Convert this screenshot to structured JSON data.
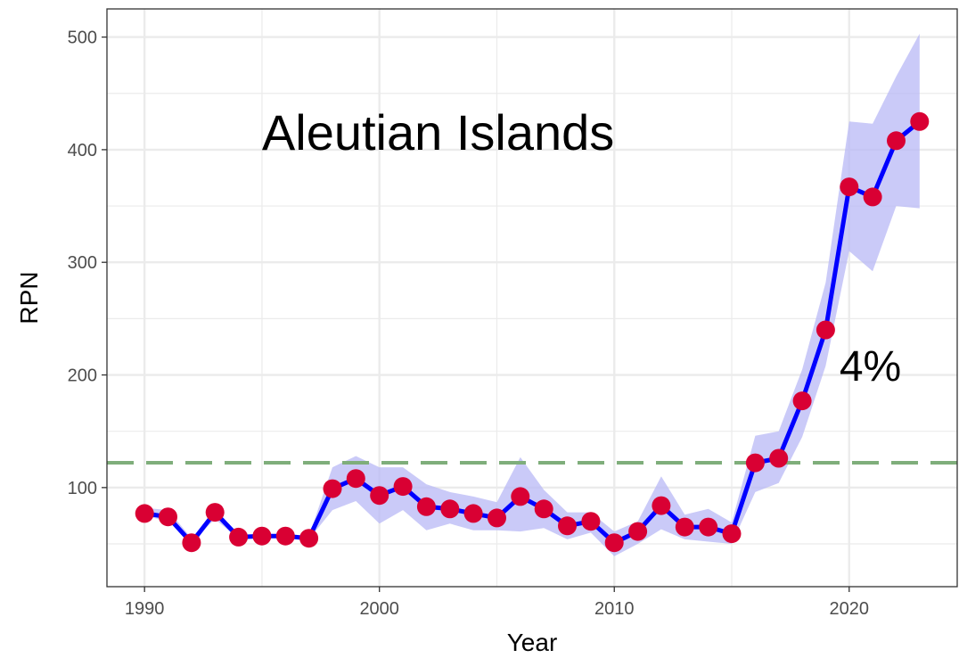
{
  "chart_data": {
    "type": "line",
    "xlabel": "Year",
    "ylabel": "RPN",
    "xlim": [
      1988.4,
      2024.6
    ],
    "ylim": [
      12,
      525
    ],
    "x_ticks": [
      1990,
      2000,
      2010,
      2020
    ],
    "x_tick_labels": [
      "1990",
      "2000",
      "2010",
      "2020"
    ],
    "y_ticks": [
      100,
      200,
      300,
      400,
      500
    ],
    "y_tick_labels": [
      "100",
      "200",
      "300",
      "400",
      "500"
    ],
    "grid": true,
    "annotations": [
      {
        "text": "Aleutian Islands",
        "x": 2002.5,
        "y": 400
      },
      {
        "text": "4%",
        "x": 2020.9,
        "y": 195
      }
    ],
    "reference_line": {
      "y": 122,
      "style": "dashed",
      "color": "#7fae7b"
    },
    "series": [
      {
        "x": [
          1990,
          1991,
          1992,
          1993,
          1994,
          1995,
          1996,
          1997,
          1998,
          1999,
          2000,
          2001,
          2002,
          2003,
          2004,
          2005,
          2006,
          2007,
          2008,
          2009,
          2010,
          2011,
          2012,
          2013,
          2014,
          2015,
          2016,
          2017,
          2018,
          2019,
          2020,
          2021,
          2022,
          2023
        ],
        "values": [
          77,
          74,
          51,
          78,
          56,
          57,
          57,
          55,
          99,
          108,
          93,
          101,
          83,
          81,
          77,
          73,
          92,
          81,
          66,
          70,
          51,
          61,
          84,
          65,
          65,
          59,
          122,
          126,
          177,
          240,
          367,
          358,
          408,
          425
        ],
        "lower": [
          75,
          70,
          52,
          72,
          55,
          56,
          56,
          54,
          80,
          88,
          68,
          80,
          62,
          68,
          62,
          62,
          61,
          64,
          54,
          60,
          39,
          50,
          63,
          54,
          52,
          50,
          96,
          104,
          145,
          208,
          310,
          292,
          350,
          348
        ],
        "upper": [
          82,
          80,
          55,
          80,
          58,
          58,
          58,
          57,
          118,
          128,
          118,
          118,
          103,
          96,
          92,
          87,
          127,
          98,
          78,
          78,
          61,
          70,
          110,
          76,
          81,
          69,
          146,
          150,
          205,
          282,
          425,
          423,
          465,
          503
        ],
        "line_color": "#0000ff",
        "point_color": "#d90033",
        "band_color": "#b8b8f5"
      }
    ],
    "colors": {
      "line": "#0000ff",
      "points": "#d90033",
      "band": "#b8b8f5",
      "reference": "#7fae7b",
      "grid": "#ebebeb",
      "frame": "#333333"
    }
  }
}
